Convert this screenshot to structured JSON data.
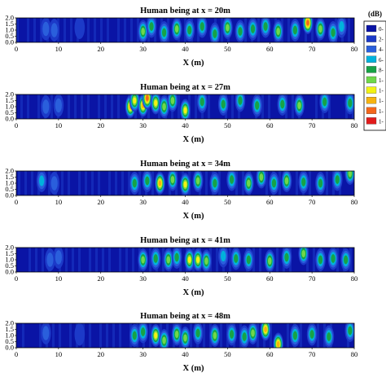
{
  "chart_data": [
    {
      "type": "heatmap",
      "title": "Human being at x = 20m",
      "xlabel": "X (m)",
      "xlim": [
        0,
        80
      ],
      "ylim": [
        0,
        2.0
      ],
      "xticks": [
        "0",
        "10",
        "20",
        "30",
        "40",
        "50",
        "60",
        "70",
        "80"
      ],
      "yticks": [
        "0.0",
        "0.5",
        "1.0",
        "1.5",
        "2.0"
      ],
      "hotspots": [
        {
          "x": 7,
          "y": 1.1,
          "value": 5
        },
        {
          "x": 9,
          "y": 1.0,
          "value": 4
        },
        {
          "x": 15,
          "y": 1.2,
          "value": 3
        },
        {
          "x": 30,
          "y": 0.9,
          "value": 10
        },
        {
          "x": 32,
          "y": 1.3,
          "value": 8
        },
        {
          "x": 35,
          "y": 0.8,
          "value": 9
        },
        {
          "x": 38,
          "y": 1.1,
          "value": 11
        },
        {
          "x": 41,
          "y": 1.0,
          "value": 9
        },
        {
          "x": 44,
          "y": 1.3,
          "value": 8
        },
        {
          "x": 47,
          "y": 0.7,
          "value": 9
        },
        {
          "x": 50,
          "y": 1.2,
          "value": 10
        },
        {
          "x": 53,
          "y": 0.9,
          "value": 9
        },
        {
          "x": 56,
          "y": 1.1,
          "value": 8
        },
        {
          "x": 59,
          "y": 1.3,
          "value": 9
        },
        {
          "x": 62,
          "y": 0.9,
          "value": 10
        },
        {
          "x": 66,
          "y": 1.0,
          "value": 8
        },
        {
          "x": 69,
          "y": 1.6,
          "value": 16
        },
        {
          "x": 72,
          "y": 1.1,
          "value": 10
        },
        {
          "x": 75,
          "y": 0.8,
          "value": 8
        },
        {
          "x": 77,
          "y": 1.3,
          "value": 7
        }
      ]
    },
    {
      "type": "heatmap",
      "title": "Human being at x = 27m",
      "xlabel": "X (m)",
      "xlim": [
        0,
        80
      ],
      "ylim": [
        0,
        2.0
      ],
      "xticks": [
        "0",
        "10",
        "20",
        "30",
        "40",
        "50",
        "60",
        "70",
        "80"
      ],
      "yticks": [
        "0.0",
        "0.5",
        "1.0",
        "1.5",
        "2.0"
      ],
      "hotspots": [
        {
          "x": 7,
          "y": 1.0,
          "value": 4
        },
        {
          "x": 10,
          "y": 1.1,
          "value": 4
        },
        {
          "x": 27,
          "y": 1.0,
          "value": 14
        },
        {
          "x": 28,
          "y": 1.5,
          "value": 12
        },
        {
          "x": 30,
          "y": 1.1,
          "value": 15
        },
        {
          "x": 31,
          "y": 1.7,
          "value": 17
        },
        {
          "x": 33,
          "y": 1.3,
          "value": 13
        },
        {
          "x": 35,
          "y": 1.0,
          "value": 11
        },
        {
          "x": 37,
          "y": 1.5,
          "value": 10
        },
        {
          "x": 40,
          "y": 0.7,
          "value": 12
        },
        {
          "x": 44,
          "y": 1.4,
          "value": 9
        },
        {
          "x": 49,
          "y": 1.2,
          "value": 9
        },
        {
          "x": 53,
          "y": 1.5,
          "value": 8
        },
        {
          "x": 57,
          "y": 1.1,
          "value": 9
        },
        {
          "x": 63,
          "y": 1.2,
          "value": 9
        },
        {
          "x": 67,
          "y": 1.1,
          "value": 10
        },
        {
          "x": 73,
          "y": 1.4,
          "value": 8
        },
        {
          "x": 79,
          "y": 1.3,
          "value": 9
        }
      ]
    },
    {
      "type": "heatmap",
      "title": "Human being at x = 34m",
      "xlabel": "X (m)",
      "xlim": [
        0,
        80
      ],
      "ylim": [
        0,
        2.0
      ],
      "xticks": [
        "0",
        "10",
        "20",
        "30",
        "40",
        "50",
        "60",
        "70",
        "80"
      ],
      "yticks": [
        "0.0",
        "0.5",
        "1.0",
        "1.5",
        "2.0"
      ],
      "hotspots": [
        {
          "x": 6,
          "y": 1.2,
          "value": 6
        },
        {
          "x": 9,
          "y": 1.0,
          "value": 5
        },
        {
          "x": 28,
          "y": 1.0,
          "value": 8
        },
        {
          "x": 31,
          "y": 1.2,
          "value": 9
        },
        {
          "x": 34,
          "y": 1.0,
          "value": 14
        },
        {
          "x": 37,
          "y": 1.3,
          "value": 11
        },
        {
          "x": 40,
          "y": 0.9,
          "value": 12
        },
        {
          "x": 43,
          "y": 1.2,
          "value": 10
        },
        {
          "x": 47,
          "y": 1.0,
          "value": 9
        },
        {
          "x": 51,
          "y": 1.3,
          "value": 8
        },
        {
          "x": 55,
          "y": 1.0,
          "value": 10
        },
        {
          "x": 58,
          "y": 1.5,
          "value": 11
        },
        {
          "x": 61,
          "y": 1.0,
          "value": 9
        },
        {
          "x": 64,
          "y": 1.2,
          "value": 10
        },
        {
          "x": 68,
          "y": 1.1,
          "value": 9
        },
        {
          "x": 72,
          "y": 1.0,
          "value": 8
        },
        {
          "x": 76,
          "y": 1.3,
          "value": 9
        },
        {
          "x": 79,
          "y": 1.8,
          "value": 11
        }
      ]
    },
    {
      "type": "heatmap",
      "title": "Human being at x = 41m",
      "xlabel": "X (m)",
      "xlim": [
        0,
        80
      ],
      "ylim": [
        0,
        2.0
      ],
      "xticks": [
        "0",
        "10",
        "20",
        "30",
        "40",
        "50",
        "60",
        "70",
        "80"
      ],
      "yticks": [
        "0.0",
        "0.5",
        "1.0",
        "1.5",
        "2.0"
      ],
      "hotspots": [
        {
          "x": 8,
          "y": 1.0,
          "value": 4
        },
        {
          "x": 10,
          "y": 1.2,
          "value": 5
        },
        {
          "x": 30,
          "y": 1.0,
          "value": 10
        },
        {
          "x": 33,
          "y": 1.1,
          "value": 9
        },
        {
          "x": 36,
          "y": 1.0,
          "value": 10
        },
        {
          "x": 38,
          "y": 1.2,
          "value": 9
        },
        {
          "x": 41,
          "y": 1.0,
          "value": 12
        },
        {
          "x": 43,
          "y": 1.0,
          "value": 13
        },
        {
          "x": 45,
          "y": 0.9,
          "value": 11
        },
        {
          "x": 49,
          "y": 1.3,
          "value": 7
        },
        {
          "x": 52,
          "y": 1.1,
          "value": 8
        },
        {
          "x": 55,
          "y": 1.0,
          "value": 9
        },
        {
          "x": 60,
          "y": 0.9,
          "value": 10
        },
        {
          "x": 64,
          "y": 1.2,
          "value": 9
        },
        {
          "x": 68,
          "y": 1.5,
          "value": 11
        },
        {
          "x": 72,
          "y": 1.0,
          "value": 9
        },
        {
          "x": 75,
          "y": 1.1,
          "value": 8
        },
        {
          "x": 78,
          "y": 1.0,
          "value": 8
        }
      ]
    },
    {
      "type": "heatmap",
      "title": "Human being at x = 48m",
      "xlabel": "X (m)",
      "xlim": [
        0,
        80
      ],
      "ylim": [
        0,
        2.0
      ],
      "xticks": [
        "0",
        "10",
        "20",
        "30",
        "40",
        "50",
        "60",
        "70",
        "80"
      ],
      "yticks": [
        "0.0",
        "0.5",
        "1.0",
        "1.5",
        "2.0"
      ],
      "hotspots": [
        {
          "x": 7,
          "y": 1.2,
          "value": 4
        },
        {
          "x": 15,
          "y": 1.1,
          "value": 3
        },
        {
          "x": 28,
          "y": 1.0,
          "value": 8
        },
        {
          "x": 30,
          "y": 1.3,
          "value": 9
        },
        {
          "x": 33,
          "y": 1.0,
          "value": 13
        },
        {
          "x": 35,
          "y": 0.6,
          "value": 11
        },
        {
          "x": 38,
          "y": 1.1,
          "value": 10
        },
        {
          "x": 40,
          "y": 0.8,
          "value": 11
        },
        {
          "x": 43,
          "y": 1.2,
          "value": 9
        },
        {
          "x": 47,
          "y": 1.0,
          "value": 10
        },
        {
          "x": 51,
          "y": 1.1,
          "value": 9
        },
        {
          "x": 54,
          "y": 0.9,
          "value": 8
        },
        {
          "x": 56,
          "y": 1.2,
          "value": 10
        },
        {
          "x": 59,
          "y": 1.5,
          "value": 14
        },
        {
          "x": 62,
          "y": 0.3,
          "value": 15
        },
        {
          "x": 66,
          "y": 1.0,
          "value": 9
        },
        {
          "x": 70,
          "y": 1.1,
          "value": 8
        },
        {
          "x": 74,
          "y": 0.9,
          "value": 9
        },
        {
          "x": 79,
          "y": 1.4,
          "value": 9
        }
      ]
    }
  ],
  "legend": {
    "unit": "(dB)",
    "labels": [
      "0-",
      "2-",
      "4-",
      "6-",
      "8-",
      "1-",
      "1-",
      "1-",
      "1-",
      "1-"
    ],
    "colors": [
      "#0a14a5",
      "#1c3ac8",
      "#2a5fdc",
      "#00b2dc",
      "#17a246",
      "#6fd84a",
      "#f2f213",
      "#f6b30f",
      "#f4661b",
      "#e11b1b"
    ]
  }
}
